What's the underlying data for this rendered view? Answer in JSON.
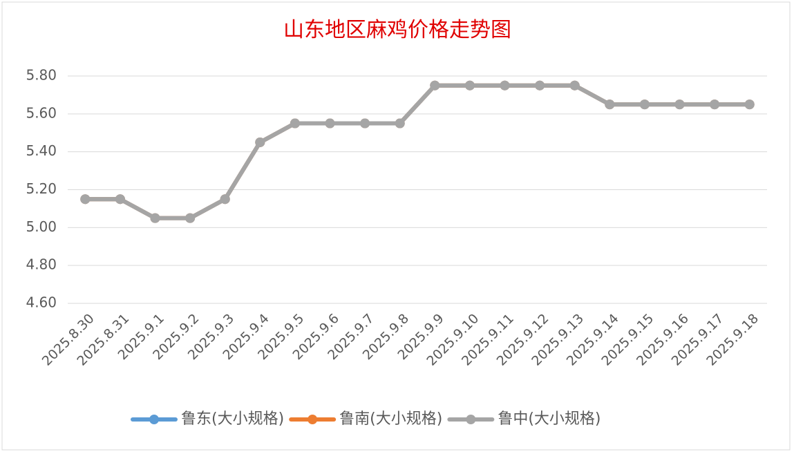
{
  "chart_data": {
    "type": "line",
    "title": "山东地区麻鸡价格走势图",
    "categories": [
      "2025.8.30",
      "2025.8.31",
      "2025.9.1",
      "2025.9.2",
      "2025.9.3",
      "2025.9.4",
      "2025.9.5",
      "2025.9.6",
      "2025.9.7",
      "2025.9.8",
      "2025.9.9",
      "2025.9.10",
      "2025.9.11",
      "2025.9.12",
      "2025.9.13",
      "2025.9.14",
      "2025.9.15",
      "2025.9.16",
      "2025.9.17",
      "2025.9.18"
    ],
    "series": [
      {
        "name": "鲁东(大小规格)",
        "color": "#5b9bd5",
        "values": [
          5.15,
          5.15,
          5.05,
          5.05,
          5.15,
          5.45,
          5.55,
          5.55,
          5.55,
          5.55,
          5.75,
          5.75,
          5.75,
          5.75,
          5.75,
          5.65,
          5.65,
          5.65,
          5.65,
          5.65
        ]
      },
      {
        "name": "鲁南(大小规格)",
        "color": "#ed7d31",
        "values": [
          5.15,
          5.15,
          5.05,
          5.05,
          5.15,
          5.45,
          5.55,
          5.55,
          5.55,
          5.55,
          5.75,
          5.75,
          5.75,
          5.75,
          5.75,
          5.65,
          5.65,
          5.65,
          5.65,
          5.65
        ]
      },
      {
        "name": "鲁中(大小规格)",
        "color": "#a5a5a5",
        "values": [
          5.15,
          5.15,
          5.05,
          5.05,
          5.15,
          5.45,
          5.55,
          5.55,
          5.55,
          5.55,
          5.75,
          5.75,
          5.75,
          5.75,
          5.75,
          5.65,
          5.65,
          5.65,
          5.65,
          5.65
        ]
      }
    ],
    "ylim": [
      4.6,
      5.8
    ],
    "yticks": [
      {
        "value": 4.6,
        "label": "4.60"
      },
      {
        "value": 4.8,
        "label": "4.80"
      },
      {
        "value": 5.0,
        "label": "5.00"
      },
      {
        "value": 5.2,
        "label": "5.20"
      },
      {
        "value": 5.4,
        "label": "5.40"
      },
      {
        "value": 5.6,
        "label": "5.60"
      },
      {
        "value": 5.8,
        "label": "5.80"
      }
    ],
    "grid": true,
    "legend": "bottom"
  }
}
